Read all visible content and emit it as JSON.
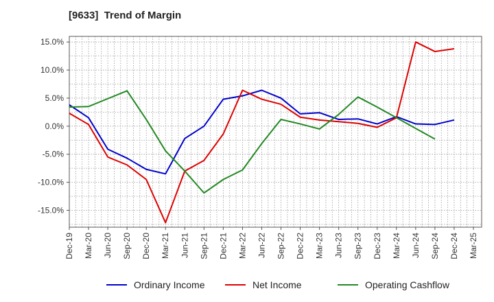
{
  "chart_data": {
    "type": "line",
    "title": "[9633]  Trend of Margin",
    "xlabel": "",
    "ylabel": "",
    "x_tick_labels": [
      "Dec-19",
      "Mar-20",
      "Jun-20",
      "Sep-20",
      "Dec-20",
      "Mar-21",
      "Jun-21",
      "Sep-21",
      "Dec-21",
      "Mar-22",
      "Jun-22",
      "Sep-22",
      "Dec-22",
      "Mar-23",
      "Jun-23",
      "Sep-23",
      "Dec-23",
      "Mar-24",
      "Jun-24",
      "Sep-24",
      "Dec-24",
      "Mar-25"
    ],
    "y_ticks": [
      15,
      10,
      5,
      0,
      -5,
      -10,
      -15
    ],
    "y_tick_labels": [
      "15.0%",
      "10.0%",
      "5.0%",
      "0.0%",
      "-5.0%",
      "-10.0%",
      "-15.0%"
    ],
    "ylim": [
      -18,
      16
    ],
    "grid": true,
    "legend_position": "bottom",
    "series": [
      {
        "name": "Ordinary Income",
        "color": "#0000cc",
        "values": [
          3.8,
          1.5,
          -4.1,
          -5.7,
          -7.7,
          -8.5,
          -2.2,
          0.0,
          4.8,
          5.4,
          6.4,
          5.0,
          2.2,
          2.4,
          1.2,
          1.3,
          0.4,
          1.7,
          0.4,
          0.3,
          1.1,
          null
        ]
      },
      {
        "name": "Net Income",
        "color": "#dd0000",
        "values": [
          2.3,
          0.3,
          -5.5,
          -6.9,
          -9.5,
          -17.2,
          -8.0,
          -6.1,
          -1.4,
          6.4,
          4.8,
          3.9,
          1.6,
          1.1,
          0.8,
          0.5,
          -0.2,
          1.5,
          15.0,
          13.3,
          13.8,
          null
        ]
      },
      {
        "name": "Operating Cashflow",
        "color": "#228822",
        "values": [
          3.4,
          3.5,
          4.9,
          6.3,
          1.2,
          -4.4,
          -8.0,
          -11.9,
          -9.5,
          -7.8,
          -3.1,
          1.2,
          0.4,
          -0.5,
          2.1,
          5.2,
          3.4,
          1.5,
          -0.4,
          -2.3,
          null,
          null
        ]
      }
    ]
  }
}
